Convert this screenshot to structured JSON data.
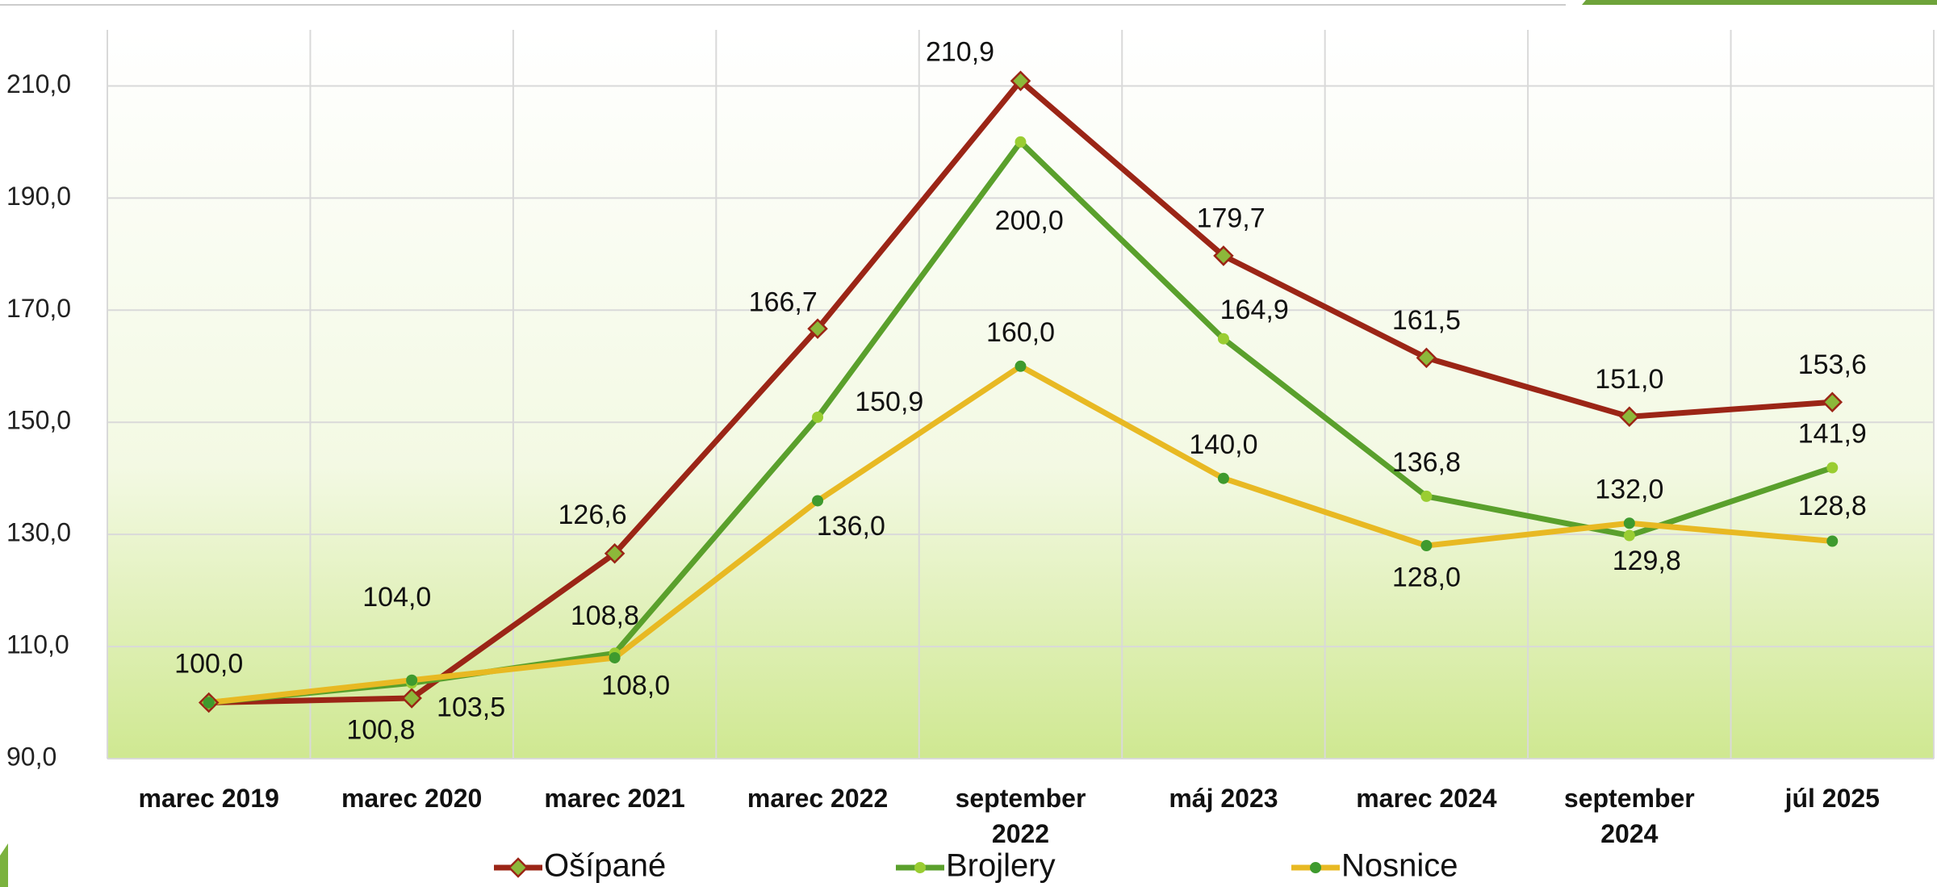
{
  "chart_data": {
    "type": "line",
    "categories": [
      "marec 2019",
      "marec 2020",
      "marec 2021",
      "marec 2022",
      "september 2022",
      "máj 2023",
      "marec 2024",
      "september 2024",
      "júl 2025"
    ],
    "series": [
      {
        "name": "Ošípané",
        "color": "#9b2516",
        "marker_color": "#8cb83a",
        "marker": "diamond",
        "values": [
          100.0,
          100.8,
          126.6,
          166.7,
          210.9,
          179.7,
          161.5,
          151.0,
          153.6
        ],
        "value_labels": [
          "100,0",
          "100,8",
          "126,6",
          "166,7",
          "210,9",
          "179,7",
          "161,5",
          "151,0",
          "153,6"
        ]
      },
      {
        "name": "Brojlery",
        "color": "#5aa02c",
        "marker_color": "#9acd32",
        "marker": "circle",
        "values": [
          100.0,
          103.5,
          108.8,
          150.9,
          200.0,
          164.9,
          136.8,
          129.8,
          141.9
        ],
        "value_labels": [
          null,
          "103,5",
          "108,8",
          "150,9",
          "200,0",
          "164,9",
          "136,8",
          "129,8",
          "141,9"
        ]
      },
      {
        "name": "Nosnice",
        "color": "#e8b923",
        "marker_color": "#3e9a2e",
        "marker": "circle",
        "values": [
          100.0,
          104.0,
          108.0,
          136.0,
          160.0,
          140.0,
          128.0,
          132.0,
          128.8
        ],
        "value_labels": [
          null,
          "104,0",
          "108,0",
          "136,0",
          "160,0",
          "140,0",
          "128,0",
          "132,0",
          "128,8"
        ]
      }
    ],
    "ylim": [
      90,
      220
    ],
    "yticks": [
      {
        "value": 90,
        "label": "90,0"
      },
      {
        "value": 110,
        "label": "110,0"
      },
      {
        "value": 130,
        "label": "130,0"
      },
      {
        "value": 150,
        "label": "150,0"
      },
      {
        "value": 170,
        "label": "170,0"
      },
      {
        "value": 190,
        "label": "190,0"
      },
      {
        "value": 210,
        "label": "210,0"
      }
    ],
    "grid": true,
    "legend": "bottom"
  }
}
